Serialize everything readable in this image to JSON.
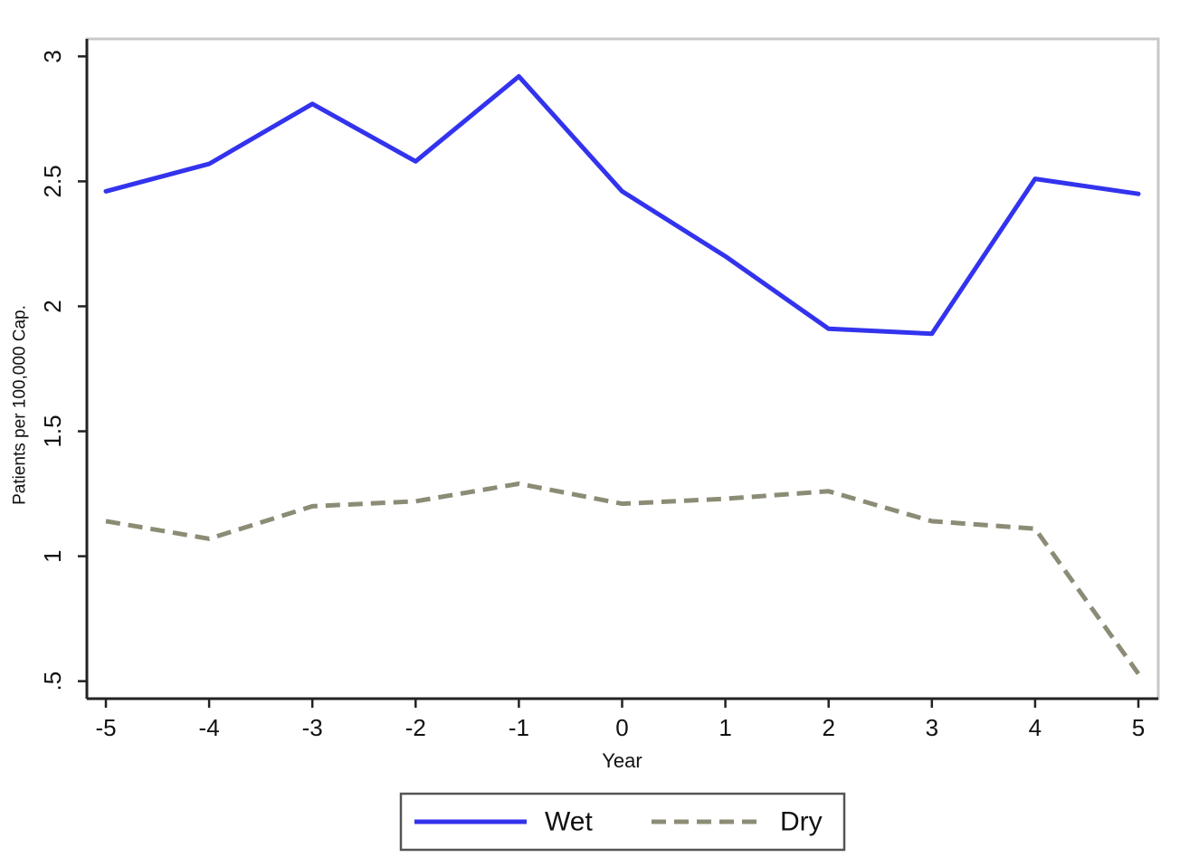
{
  "chart_data": {
    "type": "line",
    "title": "",
    "xlabel": "Year",
    "ylabel": "Patients per 100,000 Cap.",
    "x": [
      -5,
      -4,
      -3,
      -2,
      -1,
      0,
      1,
      2,
      3,
      4,
      5
    ],
    "x_tick_labels": [
      "-5",
      "-4",
      "-3",
      "-2",
      "-1",
      "0",
      "1",
      "2",
      "3",
      "4",
      "5"
    ],
    "y_ticks": [
      0.5,
      1,
      1.5,
      2,
      2.5,
      3
    ],
    "y_tick_labels": [
      ".5",
      "1",
      "1.5",
      "2",
      "2.5",
      "3"
    ],
    "xlim": [
      -5.2,
      5.2
    ],
    "ylim": [
      0.43,
      3.07
    ],
    "grid": false,
    "legend_position": "bottom-center",
    "series": [
      {
        "name": "Wet",
        "color": "#3333ee",
        "style": "solid",
        "values": [
          2.46,
          2.57,
          2.81,
          2.58,
          2.92,
          2.46,
          2.2,
          1.91,
          1.89,
          2.51,
          2.45
        ]
      },
      {
        "name": "Dry",
        "color": "#8c8c76",
        "style": "dashed",
        "values": [
          1.14,
          1.07,
          1.2,
          1.22,
          1.29,
          1.21,
          1.23,
          1.26,
          1.14,
          1.11,
          0.53
        ]
      }
    ]
  }
}
